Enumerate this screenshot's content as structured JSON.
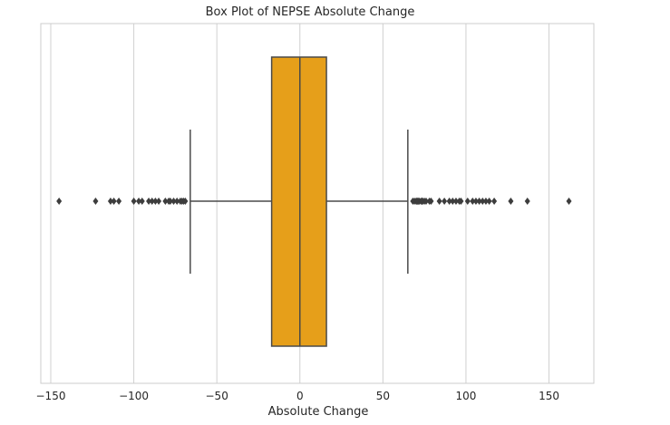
{
  "chart_data": {
    "type": "box",
    "title": "Box Plot of NEPSE Absolute Change",
    "xlabel": "Absolute Change",
    "ylabel": "",
    "xlim": [
      -156,
      177
    ],
    "xticks": [
      -150,
      -100,
      -50,
      0,
      50,
      100,
      150
    ],
    "xtick_labels": [
      "−150",
      "−100",
      "−50",
      "0",
      "50",
      "100",
      "150"
    ],
    "grid": true,
    "orientation": "horizontal",
    "box": {
      "q1": -17,
      "median": 0,
      "q3": 16,
      "whisker_low": -66,
      "whisker_high": 65
    },
    "outliers": [
      -145,
      -123,
      -114,
      -112,
      -109,
      -100,
      -97,
      -95,
      -91,
      -89,
      -87,
      -85,
      -81,
      -79,
      -78,
      -76,
      -74,
      -72,
      -71,
      -70,
      -69,
      68,
      69,
      70,
      70.5,
      71,
      71.5,
      72,
      73,
      73.5,
      74,
      75,
      76,
      78,
      79,
      84,
      87,
      90,
      92,
      94,
      96,
      97,
      101,
      104,
      106,
      108,
      110,
      112,
      114,
      117,
      127,
      137,
      162
    ],
    "colors": {
      "box_fill": "#E69F1A",
      "box_edge": "#4a4a4a",
      "outlier": "#3d3d3d",
      "grid": "#d0d0d0",
      "frame": "#cccccc"
    }
  }
}
